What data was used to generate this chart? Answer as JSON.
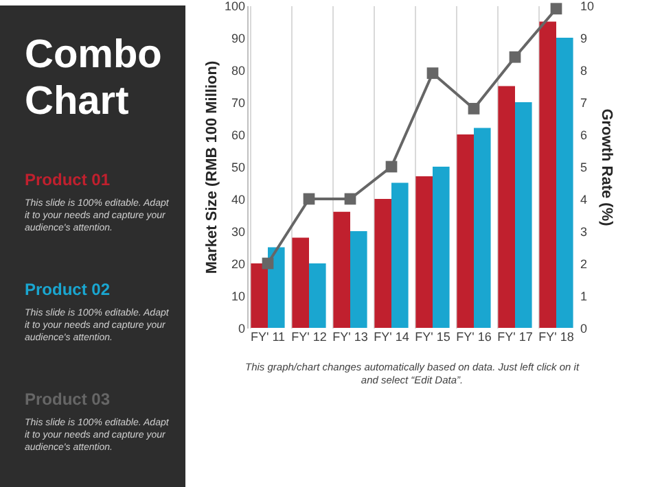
{
  "chart_data": {
    "type": "bar",
    "title": "Combo Chart",
    "categories": [
      "FY' 11",
      "FY' 12",
      "FY' 13",
      "FY' 14",
      "FY' 15",
      "FY' 16",
      "FY' 17",
      "FY' 18"
    ],
    "series": [
      {
        "name": "Product 01",
        "color": "#c0202e",
        "values": [
          20,
          28,
          36,
          40,
          47,
          60,
          75,
          95
        ]
      },
      {
        "name": "Product 02",
        "color": "#1aa6d0",
        "values": [
          25,
          20,
          30,
          45,
          50,
          62,
          70,
          90
        ]
      },
      {
        "name": "Product 03",
        "color": "#666666",
        "type": "line",
        "axis": "y2",
        "values": [
          2,
          4,
          4,
          5,
          7.9,
          6.8,
          8.4,
          9.9
        ]
      }
    ],
    "ylabel": "Market Size (RMB 100 Million)",
    "y2label": "Growth Rate (%)",
    "ylim": [
      0,
      100
    ],
    "yticks": [
      0,
      10,
      20,
      30,
      40,
      50,
      60,
      70,
      80,
      90,
      100
    ],
    "y2lim": [
      0,
      10
    ],
    "y2ticks": [
      0,
      1,
      2,
      3,
      4,
      5,
      6,
      7,
      8,
      9,
      10
    ],
    "grid": "x",
    "legend": "left",
    "marker": "square",
    "line_style": "solid",
    "annotations": [
      "This slide is 100% editable. Adapt it to your needs and capture your audience's attention.",
      "This slide is 100% editable. Adapt it to your needs and capture your audience's attention.",
      "This slide is 100% editable. Adapt it to your needs and capture your audience's attention.",
      "This graph/chart changes automatically based on data. Just left click on it and select “Edit Data”."
    ]
  }
}
